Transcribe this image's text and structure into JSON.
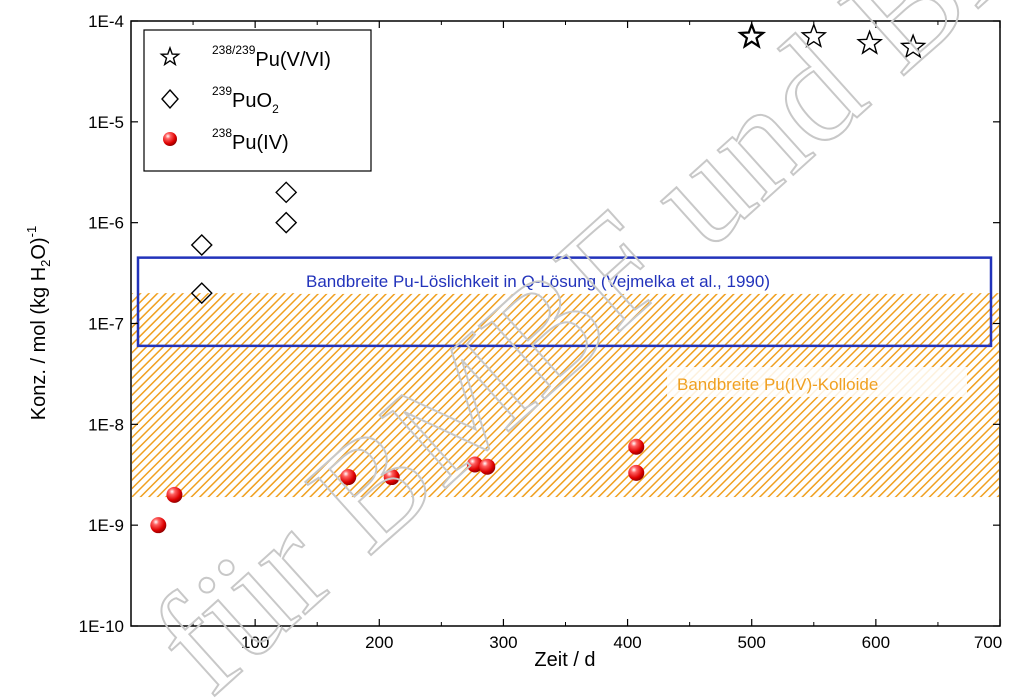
{
  "chart_data": {
    "type": "scatter",
    "xlabel": "Zeit / d",
    "ylabel": {
      "main": "Konz. / mol (kg H",
      "sub": "2",
      "mid": "O)",
      "sup": "-1"
    },
    "xlim": [
      0,
      700
    ],
    "ylim": [
      1e-10,
      0.0001
    ],
    "y_scale": "log",
    "grid": false,
    "legend_position": "top-left",
    "x_ticks": [
      100,
      200,
      300,
      400,
      500,
      600,
      700
    ],
    "y_ticks": [
      {
        "value": 1e-10,
        "label": "1E-10"
      },
      {
        "value": 1e-09,
        "label": "1E-9"
      },
      {
        "value": 1e-08,
        "label": "1E-8"
      },
      {
        "value": 1e-07,
        "label": "1E-7"
      },
      {
        "value": 1e-06,
        "label": "1E-6"
      },
      {
        "value": 1e-05,
        "label": "1E-5"
      },
      {
        "value": 0.0001,
        "label": "1E-4"
      }
    ],
    "series": [
      {
        "name": "238/239Pu(V/VI)",
        "legend_sup": "238/239",
        "legend_main": "Pu(V/VI)",
        "marker": "star",
        "color": "#000000",
        "points": [
          [
            500,
            7e-05
          ],
          [
            550,
            7e-05
          ],
          [
            595,
            6e-05
          ],
          [
            630,
            5.5e-05
          ]
        ]
      },
      {
        "name": "239PuO2",
        "legend_sup": "239",
        "legend_main": "PuO",
        "legend_sub": "2",
        "marker": "diamond",
        "color": "#000000",
        "points": [
          [
            57,
            6e-07
          ],
          [
            57,
            2e-07
          ],
          [
            125,
            2e-06
          ],
          [
            125,
            1e-06
          ]
        ]
      },
      {
        "name": "238Pu(IV)",
        "legend_sup": "238",
        "legend_main": "Pu(IV)",
        "marker": "sphere",
        "color": "#ee1111",
        "points": [
          [
            22,
            1e-09
          ],
          [
            35,
            2e-09
          ],
          [
            175,
            3e-09
          ],
          [
            210,
            3e-09
          ],
          [
            277,
            4e-09
          ],
          [
            287,
            3.8e-09
          ],
          [
            407,
            6e-09
          ],
          [
            407,
            3.3e-09
          ]
        ]
      }
    ],
    "bands": [
      {
        "label": "Bandbreite Pu(IV)-Kolloide",
        "y_range": [
          1.9e-09,
          2e-07
        ],
        "color": "#f0a020",
        "style": "hatched"
      },
      {
        "label": "Bandbreite Pu-Löslichkeit in Q-Lösung (Vejmelka et al., 1990)",
        "y_range": [
          6e-08,
          4.5e-07
        ],
        "color": "#2233bb",
        "style": "outline"
      }
    ]
  },
  "watermark": {
    "text": "für BMBF und BMU",
    "color": "#c8c8c8"
  }
}
